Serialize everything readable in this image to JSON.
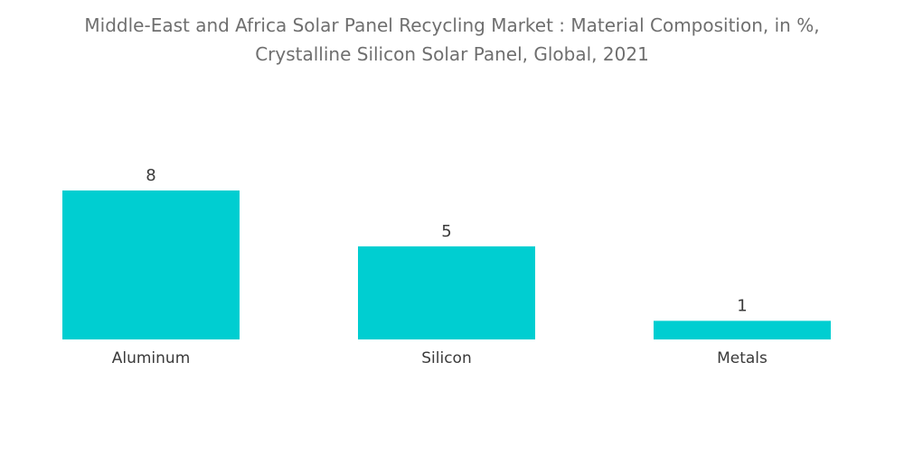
{
  "chart_data": {
    "type": "bar",
    "title_line1": "Middle-East and Africa Solar Panel Recycling Market : Material Composition, in %,",
    "title_line2": "Crystalline Silicon Solar Panel, Global, 2021",
    "categories": [
      "Aluminum",
      "Silicon",
      "Metals"
    ],
    "values": [
      8,
      5,
      1
    ],
    "xlabel": "",
    "ylabel": "",
    "ylim": [
      0,
      8
    ],
    "grid": false,
    "legend": "none",
    "bar_color": "#00ced1"
  }
}
